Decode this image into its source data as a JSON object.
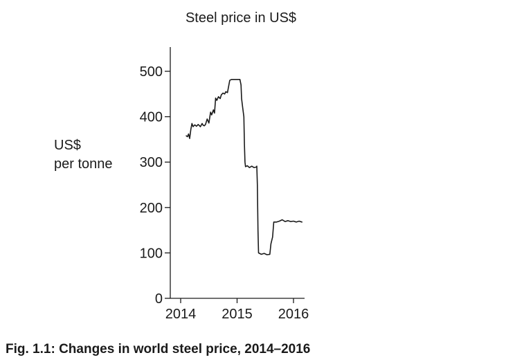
{
  "caption": "Fig. 1.1: Changes in world steel price, 2014–2016",
  "chart_data": {
    "type": "line",
    "title": "Steel price in US$",
    "ylabel_lines": [
      "US$",
      "per tonne"
    ],
    "xlabel": "",
    "xlim": [
      2014,
      2016.2
    ],
    "ylim": [
      0,
      550
    ],
    "x_ticks": [
      2014,
      2015,
      2016
    ],
    "y_ticks": [
      0,
      100,
      200,
      300,
      400,
      500
    ],
    "grid": false,
    "legend": "none",
    "series": [
      {
        "color": "#1a1a1a",
        "points": [
          [
            2014.1,
            358
          ],
          [
            2014.12,
            356
          ],
          [
            2014.14,
            362
          ],
          [
            2014.16,
            352
          ],
          [
            2014.18,
            372
          ],
          [
            2014.2,
            385
          ],
          [
            2014.22,
            378
          ],
          [
            2014.25,
            382
          ],
          [
            2014.28,
            379
          ],
          [
            2014.31,
            383
          ],
          [
            2014.35,
            378
          ],
          [
            2014.38,
            385
          ],
          [
            2014.4,
            381
          ],
          [
            2014.42,
            380
          ],
          [
            2014.44,
            383
          ],
          [
            2014.47,
            395
          ],
          [
            2014.5,
            386
          ],
          [
            2014.53,
            410
          ],
          [
            2014.55,
            404
          ],
          [
            2014.58,
            415
          ],
          [
            2014.6,
            408
          ],
          [
            2014.62,
            441
          ],
          [
            2014.64,
            436
          ],
          [
            2014.67,
            444
          ],
          [
            2014.7,
            440
          ],
          [
            2014.72,
            448
          ],
          [
            2014.75,
            452
          ],
          [
            2014.78,
            450
          ],
          [
            2014.8,
            455
          ],
          [
            2014.83,
            453
          ],
          [
            2014.87,
            480
          ],
          [
            2014.9,
            482
          ],
          [
            2014.95,
            482
          ],
          [
            2015.0,
            482
          ],
          [
            2015.05,
            482
          ],
          [
            2015.07,
            470
          ],
          [
            2015.08,
            440
          ],
          [
            2015.1,
            420
          ],
          [
            2015.12,
            400
          ],
          [
            2015.13,
            340
          ],
          [
            2015.14,
            300
          ],
          [
            2015.15,
            290
          ],
          [
            2015.18,
            292
          ],
          [
            2015.22,
            288
          ],
          [
            2015.26,
            291
          ],
          [
            2015.3,
            288
          ],
          [
            2015.34,
            289
          ],
          [
            2015.35,
            291
          ],
          [
            2015.36,
            250
          ],
          [
            2015.37,
            150
          ],
          [
            2015.38,
            100
          ],
          [
            2015.43,
            97
          ],
          [
            2015.48,
            99
          ],
          [
            2015.53,
            96
          ],
          [
            2015.58,
            97
          ],
          [
            2015.6,
            120
          ],
          [
            2015.63,
            135
          ],
          [
            2015.65,
            168
          ],
          [
            2015.7,
            168
          ],
          [
            2015.75,
            170
          ],
          [
            2015.8,
            173
          ],
          [
            2015.85,
            169
          ],
          [
            2015.9,
            171
          ],
          [
            2015.95,
            169
          ],
          [
            2016.0,
            170
          ],
          [
            2016.05,
            168
          ],
          [
            2016.1,
            170
          ],
          [
            2016.15,
            168
          ]
        ]
      }
    ]
  }
}
